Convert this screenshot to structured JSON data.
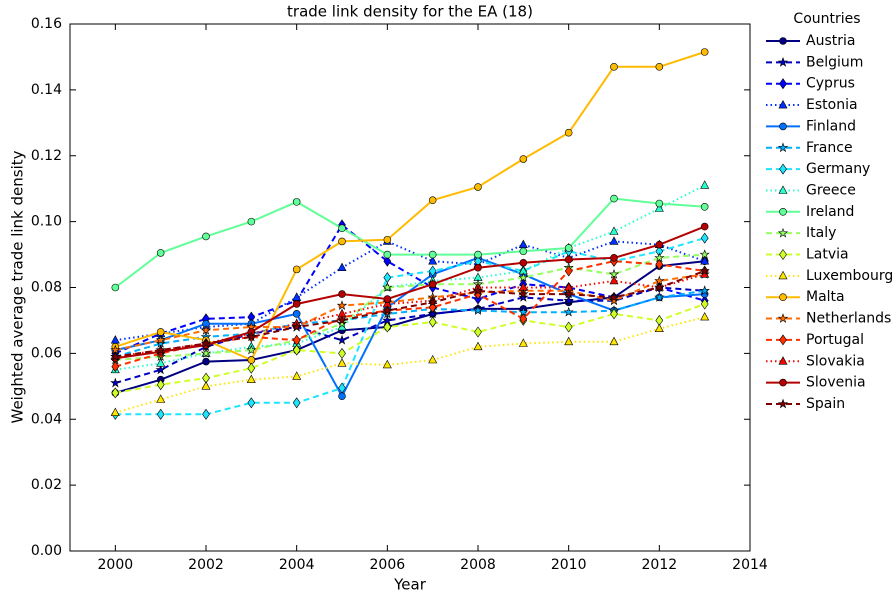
{
  "chart_data": {
    "type": "line",
    "title": "trade link density for the EA (18)",
    "x_label": "Year",
    "y_label": "Weighted average trade link density",
    "legend_title": "Countries",
    "legend": "outside upper right",
    "x": [
      2000,
      2001,
      2002,
      2003,
      2004,
      2005,
      2006,
      2007,
      2008,
      2009,
      2010,
      2011,
      2012,
      2013
    ],
    "xlim": [
      1999,
      2014
    ],
    "xticks": [
      2000,
      2002,
      2004,
      2006,
      2008,
      2010,
      2012,
      2014
    ],
    "ylim": [
      0,
      0.16
    ],
    "yticks": [
      {
        "value": 0,
        "label": "0.00"
      },
      {
        "value": 0.02,
        "label": "0.02"
      },
      {
        "value": 0.04,
        "label": "0.04"
      },
      {
        "value": 0.06,
        "label": "0.06"
      },
      {
        "value": 0.08,
        "label": "0.08"
      },
      {
        "value": 0.1,
        "label": "0.10"
      },
      {
        "value": 0.12,
        "label": "0.12"
      },
      {
        "value": 0.14,
        "label": "0.14"
      },
      {
        "value": 0.16,
        "label": "0.16"
      }
    ],
    "series": [
      {
        "name": "Austria",
        "color": "#000080",
        "marker": "circle",
        "linestyle": "solid",
        "values": [
          0.048,
          0.052,
          0.0575,
          0.058,
          0.061,
          0.067,
          0.068,
          0.072,
          0.0735,
          0.0735,
          0.0755,
          0.077,
          0.0865,
          0.088
        ]
      },
      {
        "name": "Belgium",
        "color": "#0000c4",
        "marker": "star",
        "linestyle": "dashed",
        "values": [
          0.051,
          0.055,
          0.062,
          0.066,
          0.068,
          0.064,
          0.07,
          0.072,
          0.0735,
          0.077,
          0.076,
          0.076,
          0.08,
          0.079
        ]
      },
      {
        "name": "Cyprus",
        "color": "#0000ff",
        "marker": "diamond",
        "linestyle": "dashed",
        "values": [
          0.06,
          0.066,
          0.0705,
          0.071,
          0.076,
          0.099,
          0.088,
          0.08,
          0.0765,
          0.081,
          0.08,
          0.077,
          0.08,
          0.076
        ]
      },
      {
        "name": "Estonia",
        "color": "#0030ff",
        "marker": "triangle",
        "linestyle": "dotted",
        "values": [
          0.064,
          0.066,
          0.068,
          0.069,
          0.077,
          0.086,
          0.094,
          0.088,
          0.087,
          0.093,
          0.089,
          0.094,
          0.093,
          0.088
        ]
      },
      {
        "name": "Finland",
        "color": "#0070ff",
        "marker": "circle",
        "linestyle": "solid",
        "values": [
          0.061,
          0.064,
          0.069,
          0.069,
          0.072,
          0.047,
          0.074,
          0.084,
          0.089,
          0.084,
          0.078,
          0.073,
          0.077,
          0.078
        ]
      },
      {
        "name": "France",
        "color": "#00b0ff",
        "marker": "star",
        "linestyle": "dashed",
        "values": [
          0.059,
          0.063,
          0.065,
          0.066,
          0.069,
          0.07,
          0.072,
          0.0735,
          0.073,
          0.0725,
          0.0725,
          0.073,
          0.077,
          0.079
        ]
      },
      {
        "name": "Germany",
        "color": "#1ce5ff",
        "marker": "diamond",
        "linestyle": "dashed",
        "values": [
          0.0415,
          0.0415,
          0.0415,
          0.045,
          0.045,
          0.0495,
          0.083,
          0.085,
          0.088,
          0.085,
          0.091,
          0.088,
          0.091,
          0.095
        ]
      },
      {
        "name": "Greece",
        "color": "#29ffce",
        "marker": "triangle",
        "linestyle": "dotted",
        "values": [
          0.055,
          0.057,
          0.06,
          0.062,
          0.063,
          0.068,
          0.08,
          0.082,
          0.083,
          0.085,
          0.092,
          0.097,
          0.104,
          0.111
        ]
      },
      {
        "name": "Ireland",
        "color": "#60ff97",
        "marker": "circle",
        "linestyle": "solid",
        "values": [
          0.08,
          0.0905,
          0.0955,
          0.1,
          0.106,
          0.098,
          0.09,
          0.09,
          0.09,
          0.091,
          0.092,
          0.107,
          0.1055,
          0.1045
        ]
      },
      {
        "name": "Italy",
        "color": "#97ff60",
        "marker": "star",
        "linestyle": "dashed",
        "values": [
          0.058,
          0.059,
          0.06,
          0.061,
          0.064,
          0.069,
          0.08,
          0.081,
          0.081,
          0.083,
          0.086,
          0.084,
          0.089,
          0.09
        ]
      },
      {
        "name": "Latvia",
        "color": "#ceff29",
        "marker": "diamond",
        "linestyle": "dashed",
        "values": [
          0.048,
          0.0505,
          0.0525,
          0.0555,
          0.061,
          0.06,
          0.068,
          0.0695,
          0.0665,
          0.07,
          0.068,
          0.072,
          0.07,
          0.075
        ]
      },
      {
        "name": "Luxembourg",
        "color": "#ffe600",
        "marker": "triangle",
        "linestyle": "dotted",
        "values": [
          0.042,
          0.046,
          0.05,
          0.052,
          0.053,
          0.057,
          0.0565,
          0.058,
          0.062,
          0.063,
          0.0635,
          0.0635,
          0.0675,
          0.071
        ]
      },
      {
        "name": "Malta",
        "color": "#ffbb00",
        "marker": "circle",
        "linestyle": "solid",
        "values": [
          0.062,
          0.0665,
          0.064,
          0.058,
          0.0855,
          0.094,
          0.0945,
          0.1065,
          0.1105,
          0.119,
          0.127,
          0.147,
          0.147,
          0.1515
        ]
      },
      {
        "name": "Netherlands",
        "color": "#ff6e00",
        "marker": "star",
        "linestyle": "dashed",
        "values": [
          0.061,
          0.064,
          0.067,
          0.068,
          0.068,
          0.0745,
          0.0755,
          0.077,
          0.0785,
          0.079,
          0.079,
          0.076,
          0.082,
          0.084
        ]
      },
      {
        "name": "Portugal",
        "color": "#ff3000",
        "marker": "diamond",
        "linestyle": "dashed",
        "values": [
          0.056,
          0.06,
          0.063,
          0.065,
          0.064,
          0.071,
          0.073,
          0.074,
          0.078,
          0.0705,
          0.085,
          0.088,
          0.087,
          0.085
        ]
      },
      {
        "name": "Slovakia",
        "color": "#f10800",
        "marker": "triangle",
        "linestyle": "dotted",
        "values": [
          0.059,
          0.061,
          0.063,
          0.066,
          0.069,
          0.072,
          0.075,
          0.076,
          0.08,
          0.08,
          0.08,
          0.082,
          0.08,
          0.084
        ]
      },
      {
        "name": "Slovenia",
        "color": "#b40000",
        "marker": "circle",
        "linestyle": "solid",
        "values": [
          0.0585,
          0.0605,
          0.0625,
          0.0665,
          0.075,
          0.078,
          0.0765,
          0.081,
          0.086,
          0.0875,
          0.0885,
          0.089,
          0.093,
          0.0985
        ]
      },
      {
        "name": "Spain",
        "color": "#800000",
        "marker": "star",
        "linestyle": "dashed",
        "values": [
          0.059,
          0.061,
          0.063,
          0.065,
          0.068,
          0.07,
          0.073,
          0.0755,
          0.079,
          0.078,
          0.078,
          0.077,
          0.08,
          0.085
        ]
      }
    ]
  }
}
